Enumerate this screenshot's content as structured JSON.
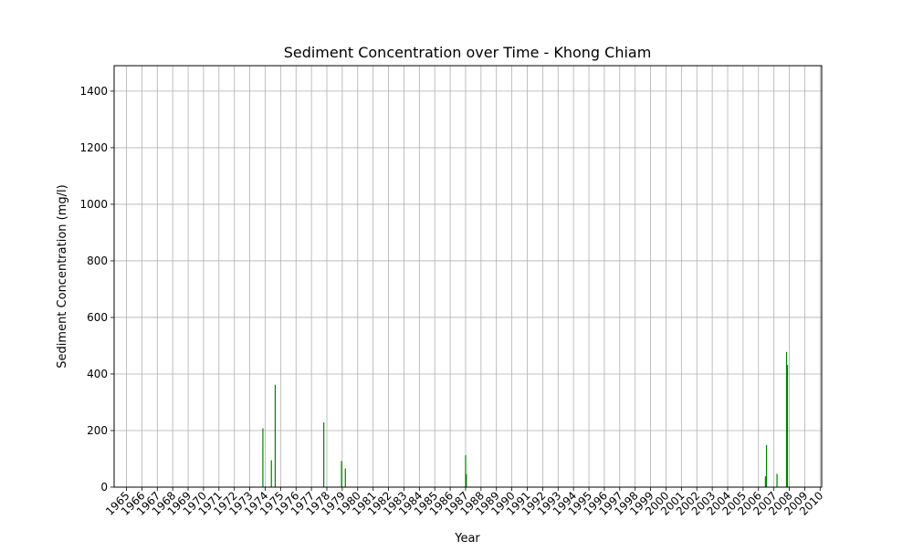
{
  "chart_data": {
    "type": "bar",
    "title": "Sediment Concentration over Time - Khong Chiam",
    "xlabel": "Year",
    "ylabel": "Sediment Concentration (mg/l)",
    "xlim": [
      1964.2,
      2010.1
    ],
    "ylim": [
      0,
      1490
    ],
    "yticks": [
      0,
      200,
      400,
      600,
      800,
      1000,
      1200,
      1400
    ],
    "xticks": [
      "1965",
      "1966",
      "1967",
      "1968",
      "1969",
      "1970",
      "1971",
      "1972",
      "1973",
      "1974",
      "1975",
      "1976",
      "1977",
      "1978",
      "1979",
      "1980",
      "1981",
      "1982",
      "1983",
      "1984",
      "1985",
      "1986",
      "1987",
      "1988",
      "1989",
      "1990",
      "1991",
      "1992",
      "1993",
      "1994",
      "1995",
      "1996",
      "1997",
      "1998",
      "1999",
      "2000",
      "2001",
      "2002",
      "2003",
      "2004",
      "2005",
      "2006",
      "2007",
      "2008",
      "2009",
      "2010"
    ],
    "grid": true,
    "color": "#008000",
    "points": [
      {
        "x": 1973.85,
        "y": 208
      },
      {
        "x": 1974.4,
        "y": 95
      },
      {
        "x": 1974.65,
        "y": 362
      },
      {
        "x": 1977.8,
        "y": 229
      },
      {
        "x": 1978.95,
        "y": 92
      },
      {
        "x": 1979.2,
        "y": 66
      },
      {
        "x": 1987.0,
        "y": 113
      },
      {
        "x": 1987.05,
        "y": 46
      },
      {
        "x": 2006.45,
        "y": 38
      },
      {
        "x": 2006.52,
        "y": 149
      },
      {
        "x": 2007.2,
        "y": 47
      },
      {
        "x": 2007.82,
        "y": 478
      },
      {
        "x": 2007.88,
        "y": 432
      }
    ]
  }
}
